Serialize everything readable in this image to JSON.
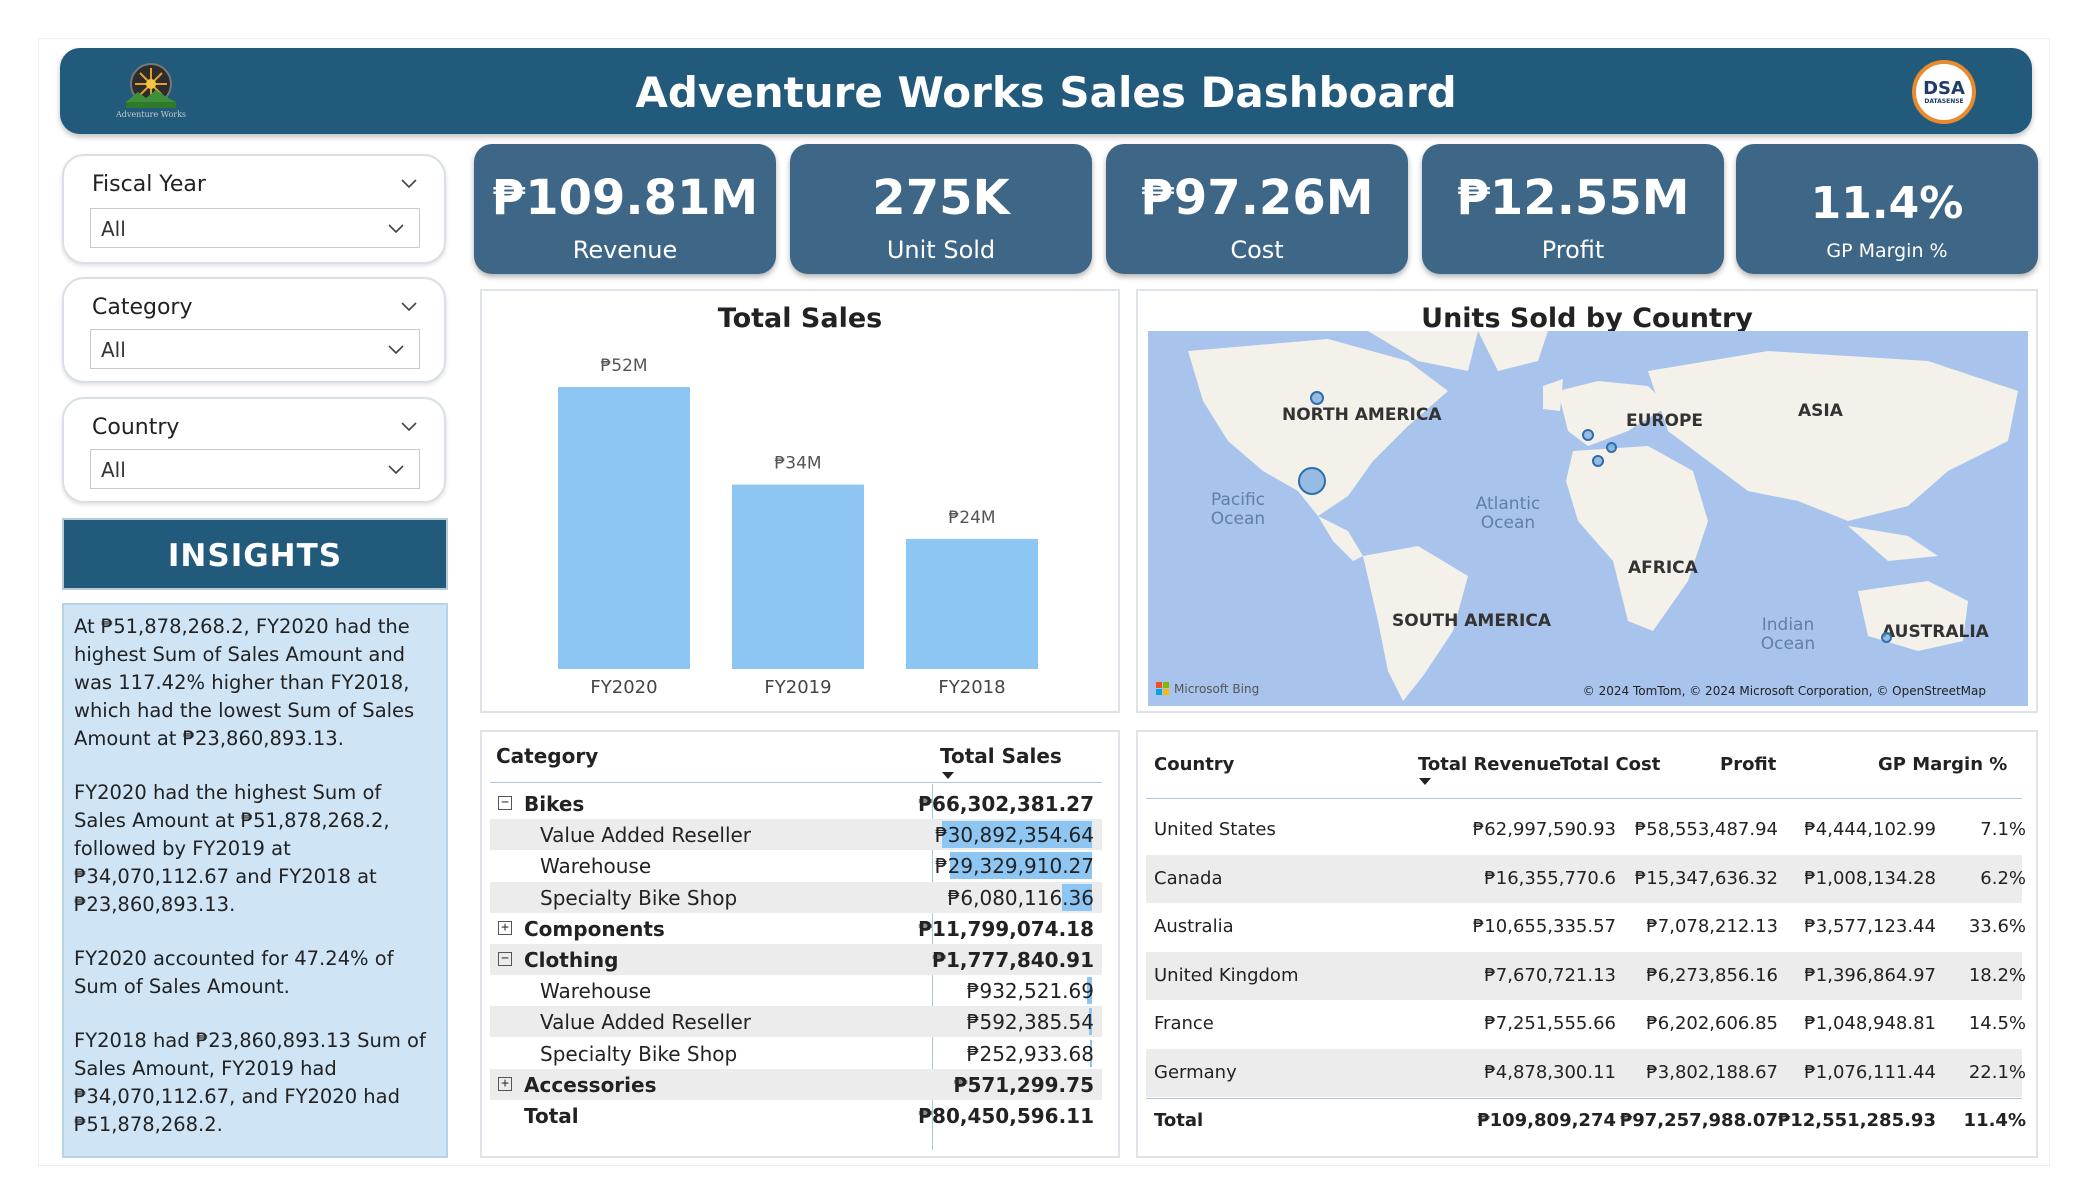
{
  "header": {
    "title": "Adventure Works Sales Dashboard",
    "logo_left_text": "Adventure Works",
    "logo_right_text": "DSA",
    "logo_right_sub": "DATASENSE"
  },
  "slicers": [
    {
      "title": "Fiscal Year",
      "value": "All"
    },
    {
      "title": "Category",
      "value": "All"
    },
    {
      "title": "Country",
      "value": "All"
    }
  ],
  "insights": {
    "title": "INSIGHTS",
    "paragraphs": [
      "At ₱51,878,268.2, FY2020 had the highest Sum of Sales Amount and was 117.42% higher than FY2018, which had the lowest Sum of Sales Amount at ₱23,860,893.13.",
      "FY2020 had the highest Sum of Sales Amount at ₱51,878,268.2, followed by FY2019 at ₱34,070,112.67 and FY2018 at ₱23,860,893.13.",
      "FY2020 accounted for 47.24% of Sum of Sales Amount.",
      "FY2018 had ₱23,860,893.13 Sum of Sales Amount, FY2019 had ₱34,070,112.67, and FY2020 had ₱51,878,268.2."
    ]
  },
  "kpis": [
    {
      "value": "₱109.81M",
      "label": "Revenue"
    },
    {
      "value": "275K",
      "label": "Unit Sold"
    },
    {
      "value": "₱97.26M",
      "label": "Cost"
    },
    {
      "value": "₱12.55M",
      "label": "Profit"
    },
    {
      "value": "11.4%",
      "label": "GP Margin %"
    }
  ],
  "colors": {
    "header": "#215a7b",
    "kpi": "#3e6686",
    "bar": "#8ec6f3",
    "insights_bg": "#cfe5f6"
  },
  "chart_data": {
    "type": "bar",
    "title": "Total Sales",
    "categories": [
      "FY2020",
      "FY2019",
      "FY2018"
    ],
    "values": [
      52,
      34,
      24
    ],
    "data_labels": [
      "₱52M",
      "₱34M",
      "₱24M"
    ],
    "unit": "₱M",
    "ylim": [
      0,
      60
    ],
    "grid": false
  },
  "map": {
    "title": "Units Sold by Country",
    "continents": [
      "NORTH AMERICA",
      "EUROPE",
      "ASIA",
      "AFRICA",
      "SOUTH AMERICA",
      "AUSTRALIA"
    ],
    "oceans": [
      "Pacific Ocean",
      "Atlantic Ocean",
      "Indian Ocean"
    ],
    "attribution": "© 2024 TomTom, © 2024 Microsoft Corporation, © OpenStreetMap",
    "provider": "Microsoft Bing"
  },
  "category_table": {
    "headers": [
      "Category",
      "Total Sales"
    ],
    "rows": [
      {
        "label": "Bikes",
        "value": "₱66,302,381.27",
        "level": 0,
        "expander": "−",
        "num": 66302381.27
      },
      {
        "label": "Value Added Reseller",
        "value": "₱30,892,354.64",
        "level": 1,
        "num": 30892354.64
      },
      {
        "label": "Warehouse",
        "value": "₱29,329,910.27",
        "level": 1,
        "num": 29329910.27
      },
      {
        "label": "Specialty Bike Shop",
        "value": "₱6,080,116.36",
        "level": 1,
        "num": 6080116.36
      },
      {
        "label": "Components",
        "value": "₱11,799,074.18",
        "level": 0,
        "expander": "+",
        "num": 11799074.18
      },
      {
        "label": "Clothing",
        "value": "₱1,777,840.91",
        "level": 0,
        "expander": "−",
        "num": 1777840.91
      },
      {
        "label": "Warehouse",
        "value": "₱932,521.69",
        "level": 1,
        "num": 932521.69
      },
      {
        "label": "Value Added Reseller",
        "value": "₱592,385.54",
        "level": 1,
        "num": 592385.54
      },
      {
        "label": "Specialty Bike Shop",
        "value": "₱252,933.68",
        "level": 1,
        "num": 252933.68
      },
      {
        "label": "Accessories",
        "value": "₱571,299.75",
        "level": 0,
        "expander": "+",
        "num": 571299.75
      }
    ],
    "total_label": "Total",
    "total_value": "₱80,450,596.11"
  },
  "country_table": {
    "headers": [
      "Country",
      "Total Revenue",
      "Total Cost",
      "Profit",
      "GP Margin %"
    ],
    "rows": [
      [
        "United States",
        "₱62,997,590.93",
        "₱58,553,487.94",
        "₱4,444,102.99",
        "7.1%"
      ],
      [
        "Canada",
        "₱16,355,770.6",
        "₱15,347,636.32",
        "₱1,008,134.28",
        "6.2%"
      ],
      [
        "Australia",
        "₱10,655,335.57",
        "₱7,078,212.13",
        "₱3,577,123.44",
        "33.6%"
      ],
      [
        "United Kingdom",
        "₱7,670,721.13",
        "₱6,273,856.16",
        "₱1,396,864.97",
        "18.2%"
      ],
      [
        "France",
        "₱7,251,555.66",
        "₱6,202,606.85",
        "₱1,048,948.81",
        "14.5%"
      ],
      [
        "Germany",
        "₱4,878,300.11",
        "₱3,802,188.67",
        "₱1,076,111.44",
        "22.1%"
      ]
    ],
    "total": [
      "Total",
      "₱109,809,274",
      "₱97,257,988.07",
      "₱12,551,285.93",
      "11.4%"
    ]
  }
}
